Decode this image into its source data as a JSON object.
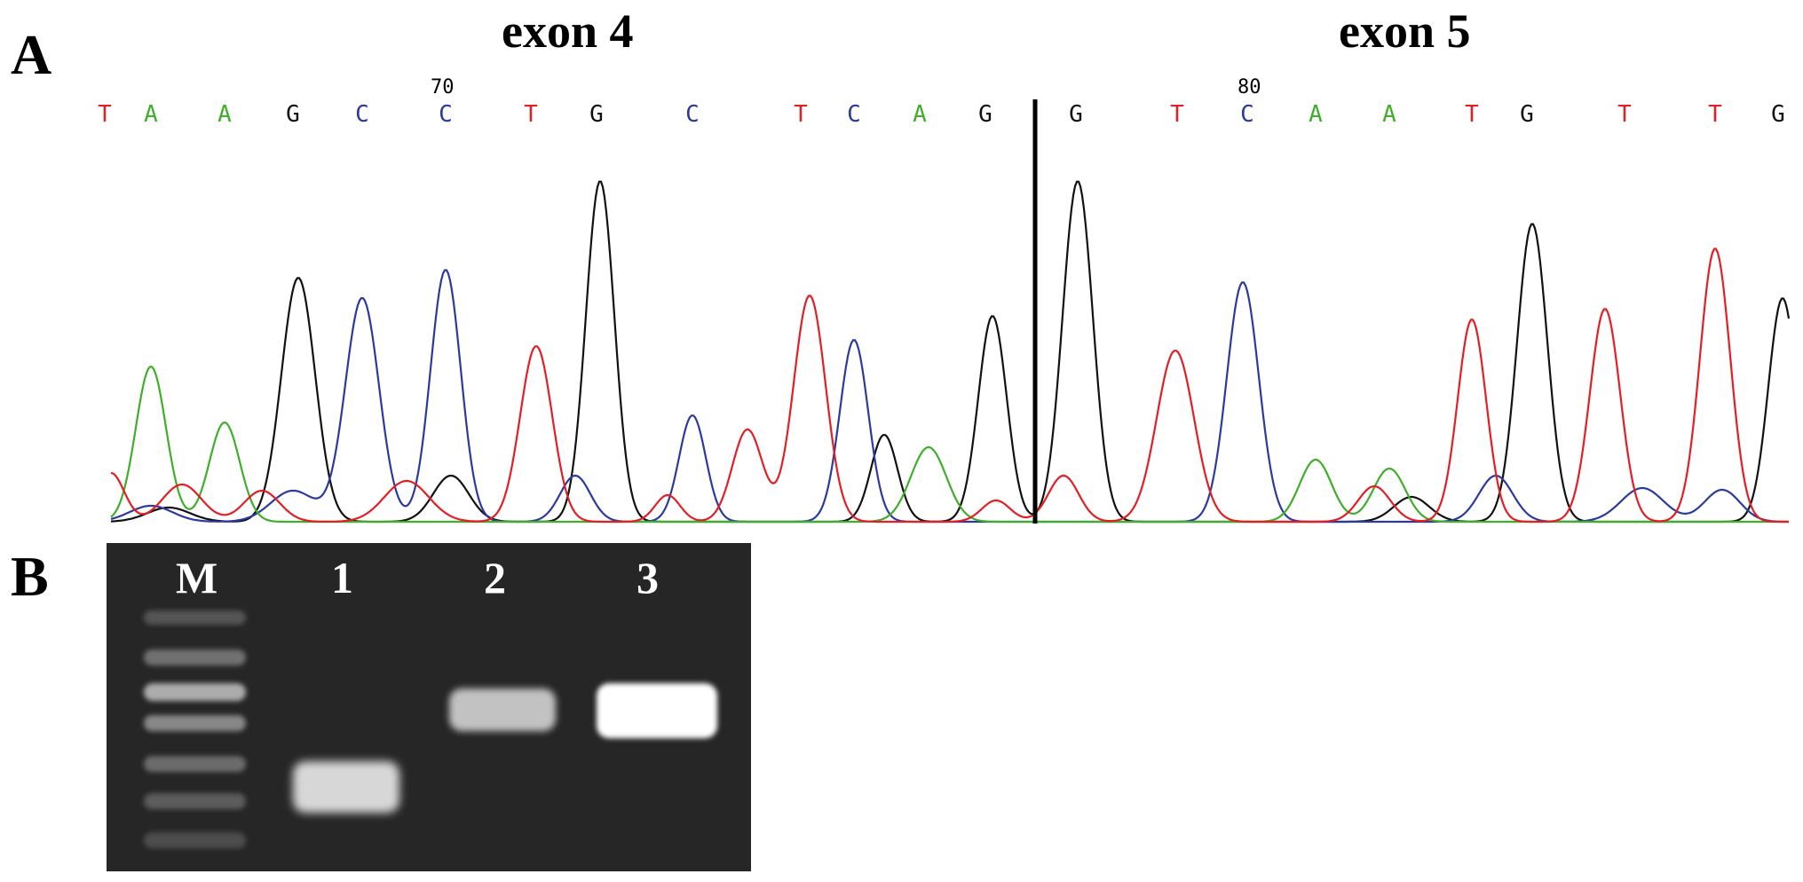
{
  "panels": {
    "a_label": "A",
    "b_label": "B"
  },
  "chromatogram": {
    "exon_left": "exon 4",
    "exon_right": "exon 5",
    "positions": [
      "70",
      "80"
    ],
    "bases": [
      "T",
      "A",
      "A",
      "G",
      "C",
      "C",
      "T",
      "G",
      "C",
      "T",
      "C",
      "A",
      "G",
      "G",
      "T",
      "C",
      "A",
      "A",
      "T",
      "G",
      "T",
      "T",
      "G"
    ],
    "colors": {
      "A": "#3fae2a",
      "C": "#2b3a9e",
      "G": "#111111",
      "T": "#e31e24"
    }
  },
  "gel": {
    "lanes": [
      "M",
      "1",
      "2",
      "3"
    ],
    "colors": {
      "background": "#262626",
      "band": "#ffffff"
    }
  }
}
